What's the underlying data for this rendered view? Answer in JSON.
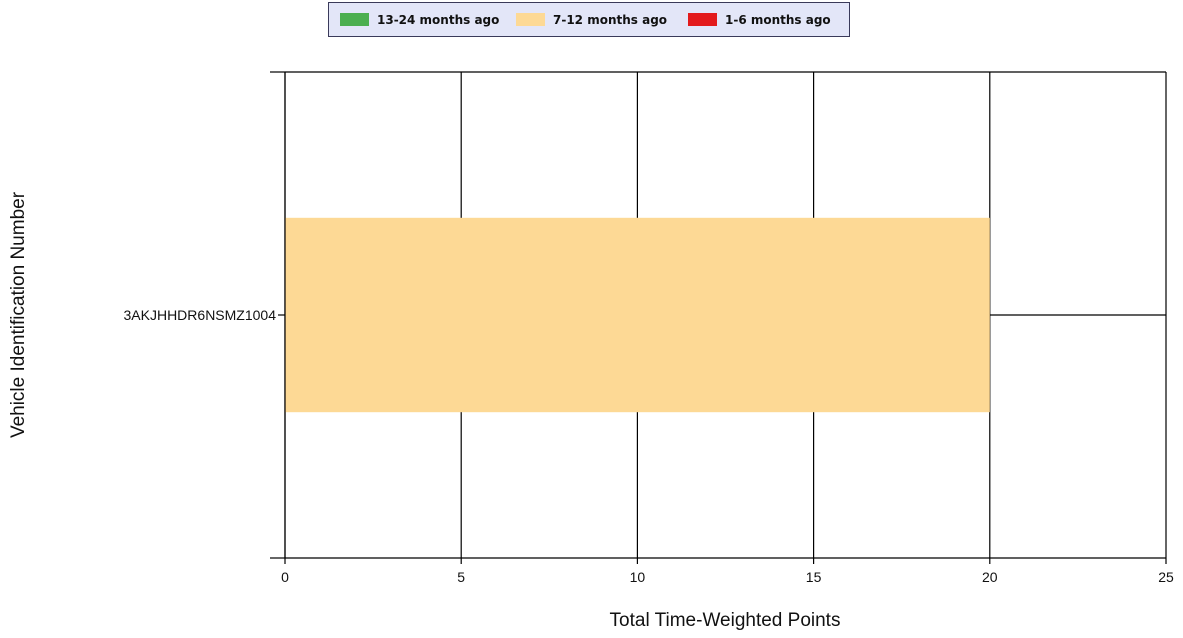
{
  "chart_data": {
    "type": "bar",
    "orientation": "horizontal",
    "stacked": true,
    "categories": [
      "3AKJHHDR6NSMZ1004"
    ],
    "series": [
      {
        "name": "13-24 months ago",
        "color": "#4caf50",
        "values": [
          0
        ]
      },
      {
        "name": "7-12 months ago",
        "color": "#fdd995",
        "values": [
          20
        ]
      },
      {
        "name": "1-6 months ago",
        "color": "#e31a1c",
        "values": [
          0
        ]
      }
    ],
    "xlabel": "Total Time-Weighted Points",
    "ylabel": "Vehicle Identification Number",
    "xlim": [
      0,
      25
    ],
    "xticks": [
      "0",
      "5",
      "10",
      "15",
      "20",
      "25"
    ],
    "grid": true,
    "legend_position": "top"
  }
}
